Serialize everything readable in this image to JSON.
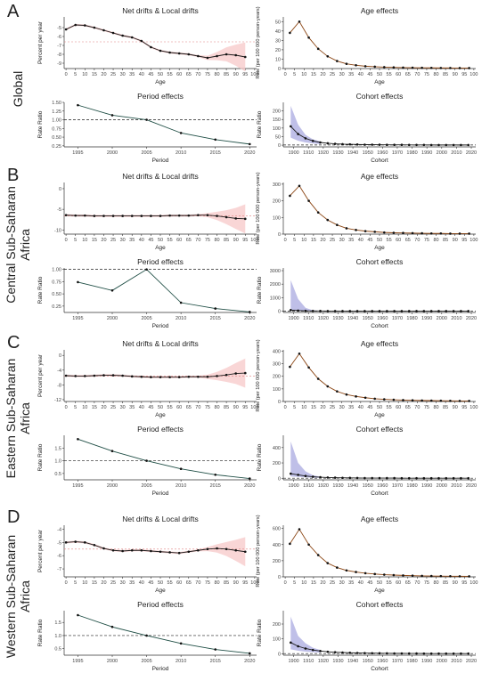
{
  "rows": [
    {
      "letter": "A",
      "label_lines": [
        "Global"
      ]
    },
    {
      "letter": "B",
      "label_lines": [
        "Central Sub-Saharan",
        "Africa"
      ]
    },
    {
      "letter": "C",
      "label_lines": [
        "Eastern Sub-Saharan",
        "Africa"
      ]
    },
    {
      "letter": "D",
      "label_lines": [
        "Western Sub-Saharan",
        "Africa"
      ]
    }
  ],
  "colors": {
    "line": "#1a1a1a",
    "age_line": "#8b4513",
    "period_line": "#1f4e45",
    "cohort_band": "#8a8ad6",
    "drift_band": "#f7c8c8",
    "drift_ref": "#e08080"
  },
  "chart_data": [
    {
      "row": 0,
      "type": "line",
      "panel": "drift",
      "title": "Net drifts & Local drifts",
      "xlabel": "Age",
      "ylabel": "Percent per year",
      "x": [
        0,
        5,
        10,
        15,
        20,
        25,
        30,
        35,
        40,
        45,
        50,
        55,
        60,
        65,
        70,
        75,
        80,
        85,
        90,
        95
      ],
      "y": [
        -5.2,
        -4.7,
        -4.75,
        -5.0,
        -5.3,
        -5.6,
        -5.9,
        -6.1,
        -6.5,
        -7.2,
        -7.6,
        -7.8,
        -7.9,
        -8.0,
        -8.2,
        -8.4,
        -8.2,
        -8.0,
        -8.1,
        -8.3
      ],
      "net": -6.6,
      "band": true,
      "ylim": [
        -9.6,
        -3.8
      ],
      "yticks": [
        -5,
        -6,
        -7,
        -8,
        -9
      ],
      "xticks": [
        0,
        5,
        10,
        15,
        20,
        25,
        30,
        35,
        40,
        45,
        50,
        55,
        60,
        65,
        70,
        75,
        80,
        85,
        90,
        95,
        100
      ],
      "xlim": [
        -1,
        101
      ]
    },
    {
      "row": 0,
      "type": "line",
      "panel": "age",
      "title": "Age effects",
      "xlabel": "Age",
      "ylabel": "Rate (per 100 000 person-years)",
      "x": [
        2.5,
        7.5,
        12.5,
        17.5,
        22.5,
        27.5,
        32.5,
        37.5,
        42.5,
        47.5,
        52.5,
        57.5,
        62.5,
        67.5,
        72.5,
        77.5,
        82.5,
        87.5,
        92.5,
        97.5
      ],
      "y": [
        38,
        50,
        33,
        21,
        13,
        8,
        5,
        3.5,
        2.5,
        2,
        1.5,
        1.2,
        1,
        0.9,
        0.8,
        0.7,
        0.6,
        0.6,
        0.5,
        0.5
      ],
      "ylim": [
        0,
        55
      ],
      "yticks": [
        0,
        10,
        20,
        30,
        40,
        50
      ],
      "xticks": [
        0,
        5,
        10,
        15,
        20,
        25,
        30,
        35,
        40,
        45,
        50,
        55,
        60,
        65,
        70,
        75,
        80,
        85,
        90,
        95,
        100
      ],
      "xlim": [
        -1,
        101
      ]
    },
    {
      "row": 0,
      "type": "line",
      "panel": "period",
      "title": "Period effects",
      "xlabel": "Period",
      "ylabel": "Rate Ratio",
      "x": [
        1995,
        2000,
        2005,
        2010,
        2015,
        2020
      ],
      "y": [
        1.42,
        1.13,
        1.0,
        0.62,
        0.43,
        0.3
      ],
      "ylim": [
        0.22,
        1.5
      ],
      "yticks": [
        0.25,
        0.5,
        0.75,
        1.0,
        1.25,
        1.5
      ],
      "ytick_labels": [
        "0.25",
        "0.50",
        "0.75",
        "1.00",
        "1.25",
        "1.50"
      ],
      "xticks": [
        1995,
        2000,
        2005,
        2010,
        2015,
        2020
      ],
      "xlim": [
        1993,
        2021
      ],
      "ref": 1
    },
    {
      "row": 0,
      "type": "line",
      "panel": "cohort",
      "title": "Cohort effects",
      "xlabel": "Cohort",
      "ylabel": "Rate Ratio",
      "x": [
        1898,
        1903,
        1908,
        1913,
        1918,
        1923,
        1928,
        1933,
        1938,
        1943,
        1948,
        1953,
        1958,
        1963,
        1968,
        1973,
        1978,
        1983,
        1988,
        1993,
        1998,
        2003,
        2008,
        2013,
        2018
      ],
      "y": [
        110,
        65,
        40,
        25,
        16,
        11,
        8,
        6,
        5,
        4,
        3,
        3,
        2.5,
        2,
        2,
        2,
        1.5,
        1.5,
        1.5,
        1,
        1,
        1,
        1,
        1,
        1
      ],
      "band_upper": [
        230,
        120,
        60,
        34,
        22
      ],
      "ylim": [
        -10,
        250
      ],
      "yticks": [
        0,
        50,
        100,
        150,
        200
      ],
      "xticks": [
        1900,
        1910,
        1920,
        1930,
        1940,
        1950,
        1960,
        1970,
        1980,
        1990,
        2000,
        2010,
        2020
      ],
      "xlim": [
        1893,
        2023
      ],
      "ref": 1
    },
    {
      "row": 1,
      "type": "line",
      "panel": "drift",
      "title": "Net drifts & Local drifts",
      "xlabel": "Age",
      "ylabel": "",
      "x": [
        0,
        5,
        10,
        15,
        20,
        25,
        30,
        35,
        40,
        45,
        50,
        55,
        60,
        65,
        70,
        75,
        80,
        85,
        90,
        95
      ],
      "y": [
        -6.4,
        -6.5,
        -6.5,
        -6.6,
        -6.6,
        -6.6,
        -6.6,
        -6.6,
        -6.6,
        -6.6,
        -6.6,
        -6.5,
        -6.5,
        -6.5,
        -6.4,
        -6.4,
        -6.6,
        -6.9,
        -7.2,
        -7.3
      ],
      "net": -6.6,
      "band": true,
      "ylim": [
        -11,
        1.5
      ],
      "yticks": [
        0,
        -5,
        -10
      ],
      "xticks": [
        0,
        5,
        10,
        15,
        20,
        25,
        30,
        35,
        40,
        45,
        50,
        55,
        60,
        65,
        70,
        75,
        80,
        85,
        90,
        95,
        100
      ],
      "xlim": [
        -1,
        101
      ]
    },
    {
      "row": 1,
      "type": "line",
      "panel": "age",
      "title": "Age effects",
      "xlabel": "Age",
      "ylabel": "Rate (per 100 000 person-years)",
      "x": [
        2.5,
        7.5,
        12.5,
        17.5,
        22.5,
        27.5,
        32.5,
        37.5,
        42.5,
        47.5,
        52.5,
        57.5,
        62.5,
        67.5,
        72.5,
        77.5,
        82.5,
        87.5,
        92.5,
        97.5
      ],
      "y": [
        230,
        290,
        200,
        130,
        85,
        55,
        35,
        25,
        18,
        14,
        10,
        8,
        7,
        6,
        5,
        4,
        4,
        3,
        3,
        3
      ],
      "ylim": [
        0,
        310
      ],
      "yticks": [
        0,
        100,
        200,
        300
      ],
      "xticks": [
        0,
        5,
        10,
        15,
        20,
        25,
        30,
        35,
        40,
        45,
        50,
        55,
        60,
        65,
        70,
        75,
        80,
        85,
        90,
        95,
        100
      ],
      "xlim": [
        -1,
        101
      ]
    },
    {
      "row": 1,
      "type": "line",
      "panel": "period",
      "title": "Period effects",
      "xlabel": "Period",
      "ylabel": "Rate Ratio",
      "x": [
        1995,
        2000,
        2005,
        2010,
        2015,
        2020
      ],
      "y": [
        0.74,
        0.57,
        1.0,
        0.32,
        0.2,
        0.13
      ],
      "ylim": [
        0.12,
        1.03
      ],
      "yticks": [
        0.25,
        0.5,
        0.75,
        1.0
      ],
      "ytick_labels": [
        "0.25",
        "0.50",
        "0.75",
        "1.00"
      ],
      "xticks": [
        1995,
        2000,
        2005,
        2010,
        2015,
        2020
      ],
      "xlim": [
        1993,
        2021
      ],
      "ref": 1
    },
    {
      "row": 1,
      "type": "line",
      "panel": "cohort",
      "title": "Cohort effects",
      "xlabel": "Cohort",
      "ylabel": "Rate Ratio",
      "x": [
        1898,
        1903,
        1908,
        1913,
        1918,
        1923,
        1928,
        1933,
        1938,
        1943,
        1948,
        1953,
        1958,
        1963,
        1968,
        1973,
        1978,
        1983,
        1988,
        1993,
        1998,
        2003,
        2008,
        2013,
        2018
      ],
      "y": [
        80,
        40,
        22,
        14,
        9,
        6,
        4,
        3,
        2.5,
        2,
        2,
        1.5,
        1.5,
        1.2,
        1.2,
        1,
        1,
        1,
        1,
        1,
        1,
        1,
        1,
        1,
        1
      ],
      "band_upper": [
        2300,
        900,
        250,
        60,
        20
      ],
      "ylim": [
        -100,
        3200
      ],
      "yticks": [
        0,
        1000,
        2000,
        3000
      ],
      "xticks": [
        1900,
        1910,
        1920,
        1930,
        1940,
        1950,
        1960,
        1970,
        1980,
        1990,
        2000,
        2010,
        2020
      ],
      "xlim": [
        1893,
        2023
      ],
      "ref": 1
    },
    {
      "row": 2,
      "type": "line",
      "panel": "drift",
      "title": "Net drifts & Local drifts",
      "xlabel": "Age",
      "ylabel": "Percent per year",
      "x": [
        0,
        5,
        10,
        15,
        20,
        25,
        30,
        35,
        40,
        45,
        50,
        55,
        60,
        65,
        70,
        75,
        80,
        85,
        90,
        95
      ],
      "y": [
        -5.5,
        -5.6,
        -5.6,
        -5.5,
        -5.4,
        -5.4,
        -5.5,
        -5.7,
        -5.8,
        -5.9,
        -5.9,
        -5.9,
        -5.9,
        -5.8,
        -5.8,
        -5.8,
        -5.6,
        -5.3,
        -4.9,
        -4.8
      ],
      "net": -5.6,
      "band": true,
      "ylim": [
        -12.5,
        1.5
      ],
      "yticks": [
        0,
        -4,
        -8,
        -12
      ],
      "xticks": [
        0,
        5,
        10,
        15,
        20,
        25,
        30,
        35,
        40,
        45,
        50,
        55,
        60,
        65,
        70,
        75,
        80,
        85,
        90,
        95,
        100
      ],
      "xlim": [
        -1,
        101
      ]
    },
    {
      "row": 2,
      "type": "line",
      "panel": "age",
      "title": "Age effects",
      "xlabel": "Age",
      "ylabel": "Rate (per 100 000 person-years)",
      "x": [
        2.5,
        7.5,
        12.5,
        17.5,
        22.5,
        27.5,
        32.5,
        37.5,
        42.5,
        47.5,
        52.5,
        57.5,
        62.5,
        67.5,
        72.5,
        77.5,
        82.5,
        87.5,
        92.5,
        97.5
      ],
      "y": [
        275,
        380,
        270,
        180,
        120,
        80,
        55,
        40,
        30,
        22,
        17,
        14,
        11,
        9,
        8,
        7,
        6,
        5,
        4,
        4
      ],
      "ylim": [
        0,
        410
      ],
      "yticks": [
        0,
        100,
        200,
        300,
        400
      ],
      "xticks": [
        0,
        5,
        10,
        15,
        20,
        25,
        30,
        35,
        40,
        45,
        50,
        55,
        60,
        65,
        70,
        75,
        80,
        85,
        90,
        95,
        100
      ],
      "xlim": [
        -1,
        101
      ]
    },
    {
      "row": 2,
      "type": "line",
      "panel": "period",
      "title": "Period effects",
      "xlabel": "Period",
      "ylabel": "Rate Ratio",
      "x": [
        1995,
        2000,
        2005,
        2010,
        2015,
        2020
      ],
      "y": [
        1.85,
        1.38,
        1.0,
        0.68,
        0.45,
        0.3
      ],
      "ylim": [
        0.25,
        2.0
      ],
      "yticks": [
        0.5,
        1.0,
        1.5
      ],
      "ytick_labels": [
        "0.5",
        "1.0",
        "1.5"
      ],
      "xticks": [
        1995,
        2000,
        2005,
        2010,
        2015,
        2020
      ],
      "xlim": [
        1993,
        2021
      ],
      "ref": 1
    },
    {
      "row": 2,
      "type": "line",
      "panel": "cohort",
      "title": "Cohort effects",
      "xlabel": "Cohort",
      "ylabel": "Rate Ratio",
      "x": [
        1898,
        1903,
        1908,
        1913,
        1918,
        1923,
        1928,
        1933,
        1938,
        1943,
        1948,
        1953,
        1958,
        1963,
        1968,
        1973,
        1978,
        1983,
        1988,
        1993,
        1998,
        2003,
        2008,
        2013,
        2018
      ],
      "y": [
        60,
        45,
        30,
        20,
        14,
        10,
        8,
        6,
        5,
        4,
        3,
        3,
        2.5,
        2,
        2,
        1.5,
        1.5,
        1.2,
        1,
        1,
        1,
        1,
        1,
        1,
        1
      ],
      "band_upper": [
        480,
        200,
        90,
        40,
        20
      ],
      "ylim": [
        -20,
        560
      ],
      "yticks": [
        0,
        200,
        400
      ],
      "xticks": [
        1900,
        1910,
        1920,
        1930,
        1940,
        1950,
        1960,
        1970,
        1980,
        1990,
        2000,
        2010,
        2020
      ],
      "xlim": [
        1893,
        2023
      ],
      "ref": 1
    },
    {
      "row": 3,
      "type": "line",
      "panel": "drift",
      "title": "Net drifts & Local drifts",
      "xlabel": "Age",
      "ylabel": "Percent per year",
      "x": [
        0,
        5,
        10,
        15,
        20,
        25,
        30,
        35,
        40,
        45,
        50,
        55,
        60,
        65,
        70,
        75,
        80,
        85,
        90,
        95
      ],
      "y": [
        -5.0,
        -4.95,
        -5.0,
        -5.2,
        -5.45,
        -5.6,
        -5.65,
        -5.6,
        -5.6,
        -5.65,
        -5.7,
        -5.75,
        -5.8,
        -5.7,
        -5.6,
        -5.5,
        -5.45,
        -5.5,
        -5.6,
        -5.7
      ],
      "net": -5.5,
      "band": true,
      "ylim": [
        -7.6,
        -3.7
      ],
      "yticks": [
        -4,
        -5,
        -6,
        -7
      ],
      "xticks": [
        0,
        5,
        10,
        15,
        20,
        25,
        30,
        35,
        40,
        45,
        50,
        55,
        60,
        65,
        70,
        75,
        80,
        85,
        90,
        95,
        100
      ],
      "xlim": [
        -1,
        101
      ]
    },
    {
      "row": 3,
      "type": "line",
      "panel": "age",
      "title": "Age effects",
      "xlabel": "Age",
      "ylabel": "Rate (per 100 000 person-years)",
      "x": [
        2.5,
        7.5,
        12.5,
        17.5,
        22.5,
        27.5,
        32.5,
        37.5,
        42.5,
        47.5,
        52.5,
        57.5,
        62.5,
        67.5,
        72.5,
        77.5,
        82.5,
        87.5,
        92.5,
        97.5
      ],
      "y": [
        410,
        590,
        400,
        270,
        170,
        115,
        80,
        60,
        45,
        35,
        27,
        22,
        18,
        15,
        12,
        10,
        9,
        8,
        7,
        6
      ],
      "ylim": [
        0,
        640
      ],
      "yticks": [
        0,
        200,
        400,
        600
      ],
      "xticks": [
        0,
        5,
        10,
        15,
        20,
        25,
        30,
        35,
        40,
        45,
        50,
        55,
        60,
        65,
        70,
        75,
        80,
        85,
        90,
        95,
        100
      ],
      "xlim": [
        -1,
        101
      ]
    },
    {
      "row": 3,
      "type": "line",
      "panel": "period",
      "title": "Period effects",
      "xlabel": "Period",
      "ylabel": "Rate Ratio",
      "x": [
        1995,
        2000,
        2005,
        2010,
        2015,
        2020
      ],
      "y": [
        1.78,
        1.33,
        1.0,
        0.7,
        0.47,
        0.32
      ],
      "ylim": [
        0.25,
        1.95
      ],
      "yticks": [
        0.5,
        1.0,
        1.5
      ],
      "ytick_labels": [
        "0.5",
        "1.0",
        "1.5"
      ],
      "xticks": [
        1995,
        2000,
        2005,
        2010,
        2015,
        2020
      ],
      "xlim": [
        1993,
        2021
      ],
      "ref": 1
    },
    {
      "row": 3,
      "type": "line",
      "panel": "cohort",
      "title": "Cohort effects",
      "xlabel": "Cohort",
      "ylabel": "Rate Ratio",
      "x": [
        1898,
        1903,
        1908,
        1913,
        1918,
        1923,
        1928,
        1933,
        1938,
        1943,
        1948,
        1953,
        1958,
        1963,
        1968,
        1973,
        1978,
        1983,
        1988,
        1993,
        1998,
        2003,
        2008,
        2013,
        2018
      ],
      "y": [
        75,
        50,
        35,
        25,
        18,
        13,
        10,
        8,
        6,
        5,
        4,
        3.5,
        3,
        2.5,
        2,
        2,
        1.5,
        1.5,
        1.2,
        1,
        1,
        1,
        1,
        1,
        1
      ],
      "band_upper": [
        250,
        120,
        70,
        40,
        25
      ],
      "ylim": [
        -10,
        290
      ],
      "yticks": [
        0,
        100,
        200
      ],
      "xticks": [
        1900,
        1910,
        1920,
        1930,
        1940,
        1950,
        1960,
        1970,
        1980,
        1990,
        2000,
        2010,
        2020
      ],
      "xlim": [
        1893,
        2023
      ],
      "ref": 1
    }
  ]
}
